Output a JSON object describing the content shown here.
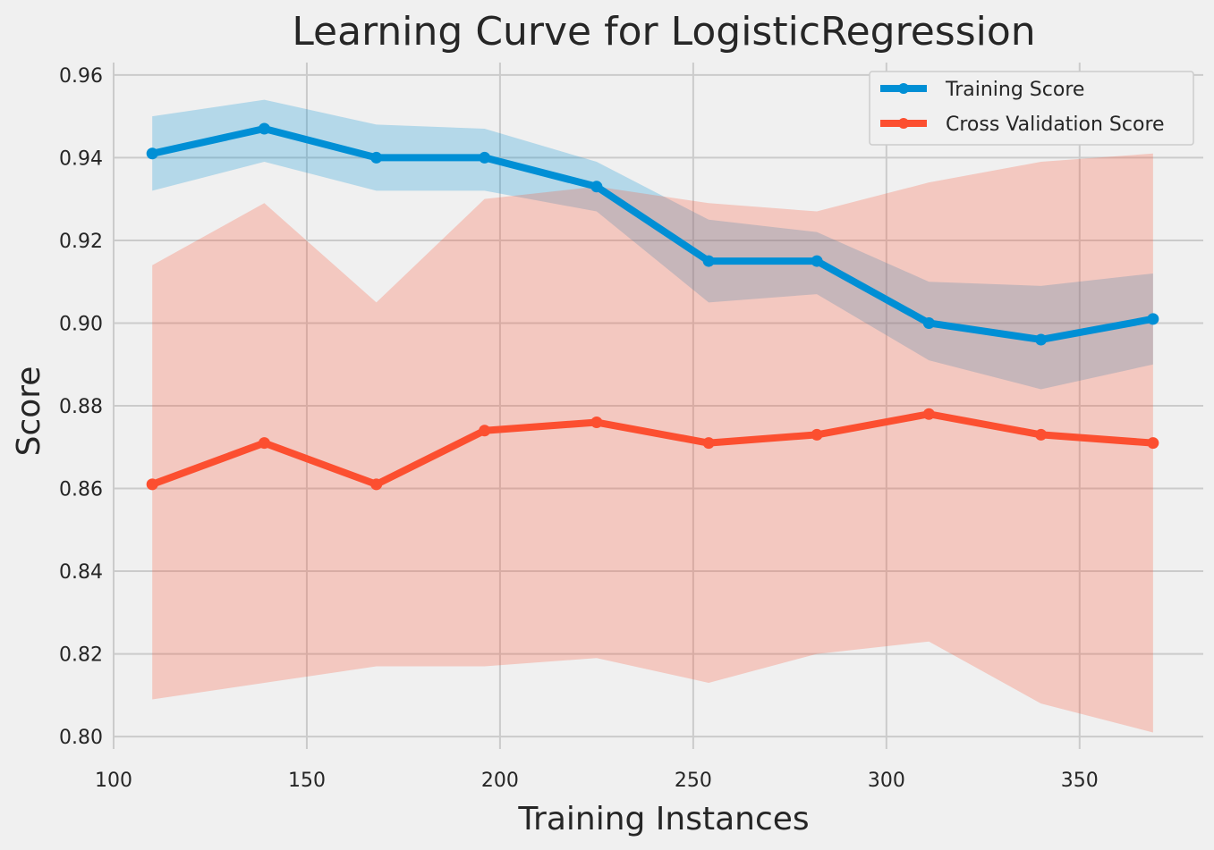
{
  "chart_data": {
    "type": "line",
    "title": "Learning Curve for LogisticRegression",
    "xlabel": "Training Instances",
    "ylabel": "Score",
    "xlim": [
      100,
      382
    ],
    "ylim": [
      0.797,
      0.963
    ],
    "x": [
      110,
      139,
      168,
      196,
      225,
      254,
      282,
      311,
      340,
      369
    ],
    "x_ticks": [
      100,
      150,
      200,
      250,
      300,
      350
    ],
    "y_ticks": [
      0.8,
      0.82,
      0.84,
      0.86,
      0.88,
      0.9,
      0.92,
      0.94,
      0.96
    ],
    "grid": true,
    "legend_position": "top-right",
    "series": [
      {
        "name": "Training Score",
        "color": "#008fd5",
        "values": [
          0.941,
          0.947,
          0.94,
          0.94,
          0.933,
          0.915,
          0.915,
          0.9,
          0.896,
          0.901
        ],
        "lower": [
          0.932,
          0.939,
          0.932,
          0.932,
          0.927,
          0.905,
          0.907,
          0.891,
          0.884,
          0.89
        ],
        "upper": [
          0.95,
          0.954,
          0.948,
          0.947,
          0.939,
          0.925,
          0.922,
          0.91,
          0.909,
          0.912
        ]
      },
      {
        "name": "Cross Validation Score",
        "color": "#fc4f30",
        "values": [
          0.861,
          0.871,
          0.861,
          0.874,
          0.876,
          0.871,
          0.873,
          0.878,
          0.873,
          0.871
        ],
        "lower": [
          0.809,
          0.813,
          0.817,
          0.817,
          0.819,
          0.813,
          0.82,
          0.823,
          0.808,
          0.801
        ],
        "upper": [
          0.914,
          0.929,
          0.905,
          0.93,
          0.933,
          0.929,
          0.927,
          0.934,
          0.939,
          0.941
        ]
      }
    ]
  }
}
